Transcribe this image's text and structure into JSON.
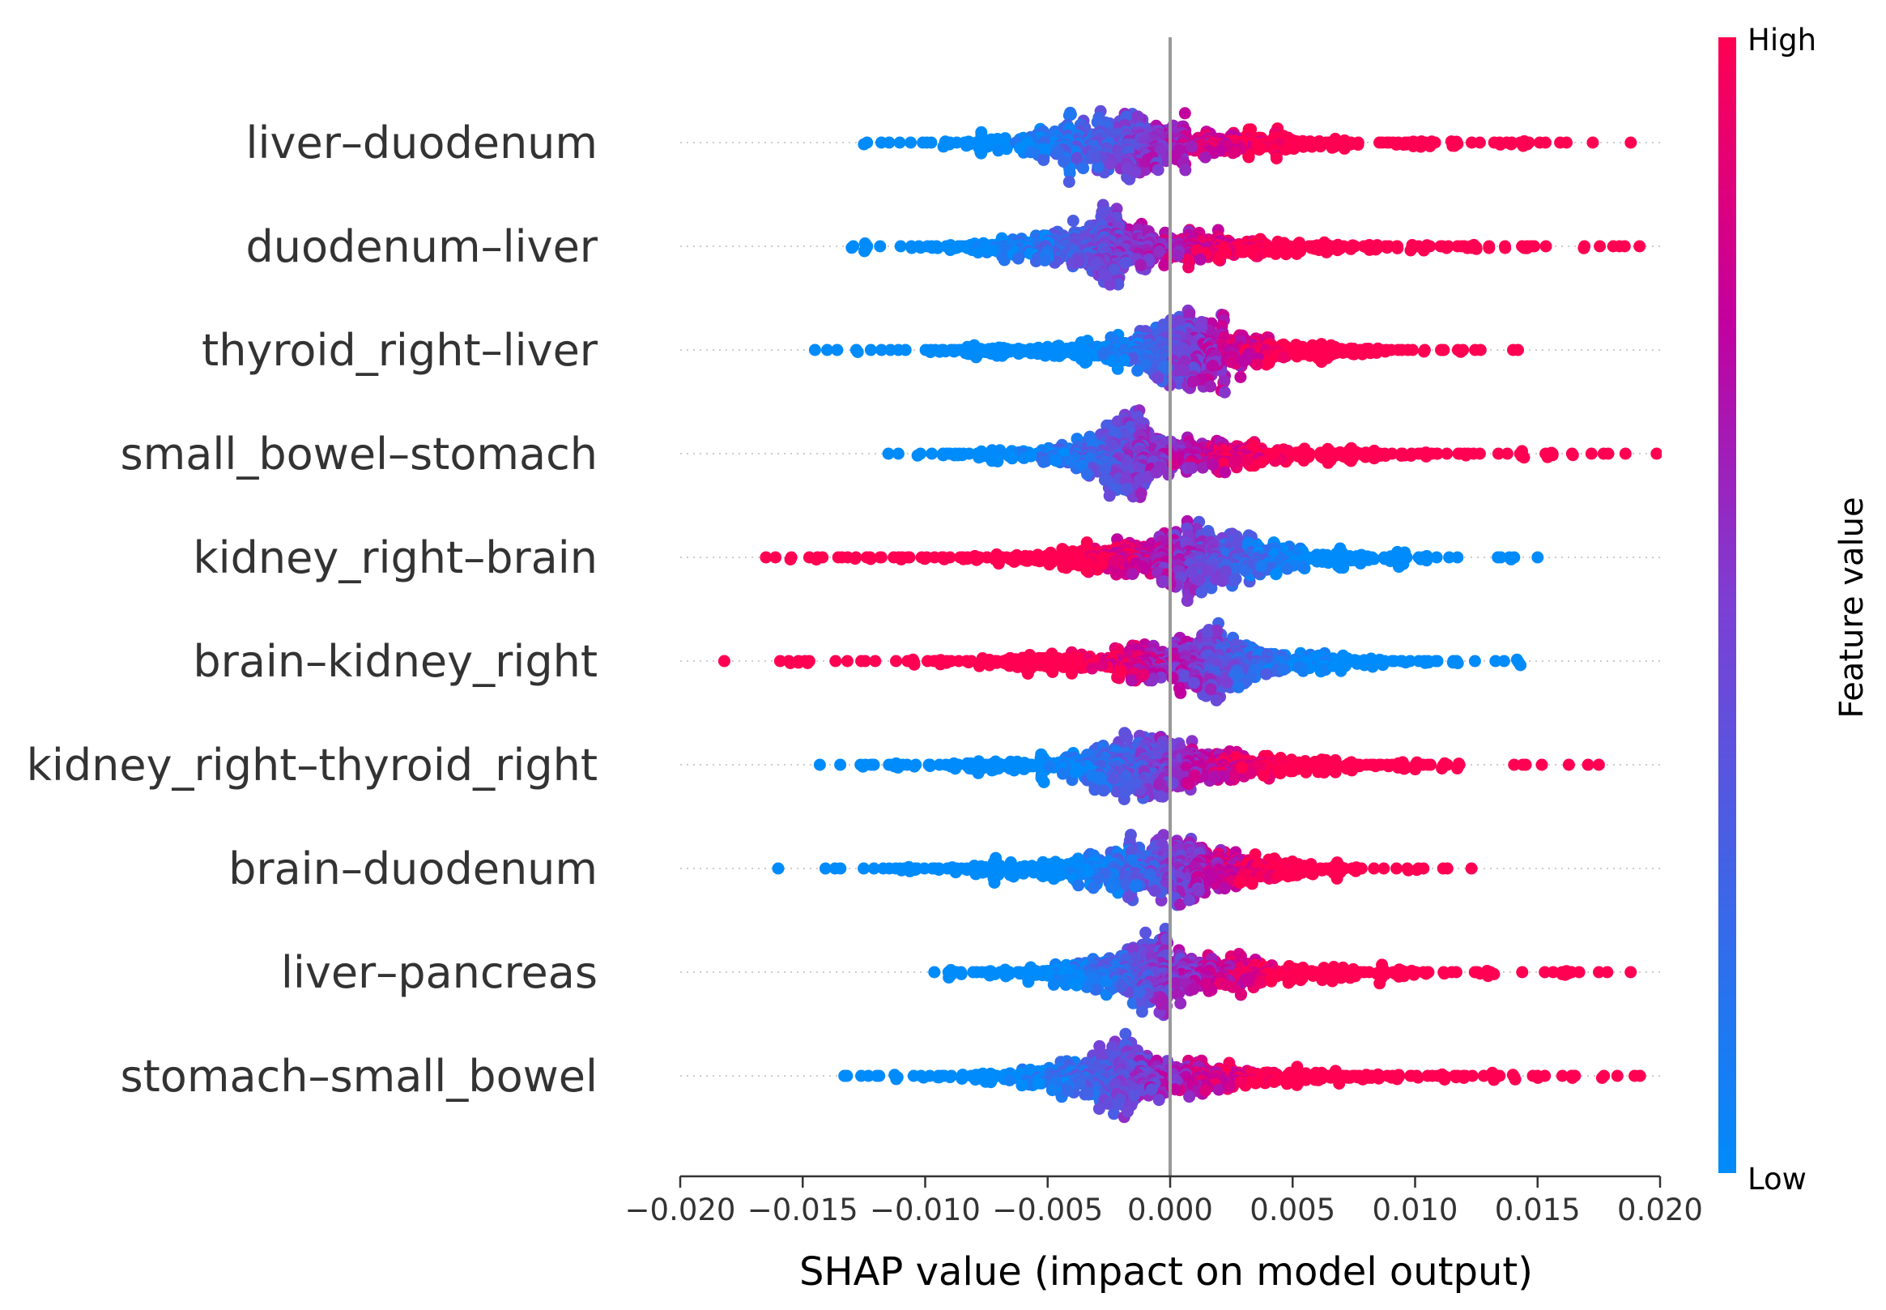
{
  "chart_data": {
    "type": "scatter",
    "subtype": "beeswarm",
    "title": "",
    "xlabel": "SHAP value (impact on model output)",
    "ylabel": "",
    "xlim": [
      -0.02,
      0.02
    ],
    "xticks": [
      -0.02,
      -0.015,
      -0.01,
      -0.005,
      0.0,
      0.005,
      0.01,
      0.015,
      0.02
    ],
    "xtick_labels": [
      "−0.020",
      "−0.015",
      "−0.010",
      "−0.005",
      "0.000",
      "0.005",
      "0.010",
      "0.015",
      "0.020"
    ],
    "zero_line": 0.0,
    "grid": false,
    "features": [
      {
        "name": "liver–duodenum",
        "min": -0.0125,
        "max": 0.02,
        "center": -0.0012,
        "skew": 1.0,
        "outliers": [
          -0.0125
        ]
      },
      {
        "name": "duodenum–liver",
        "min": -0.013,
        "max": 0.02,
        "center": -0.002,
        "skew": 1.0,
        "outliers": [
          -0.013
        ]
      },
      {
        "name": "thyroid_right–liver",
        "min": -0.0145,
        "max": 0.0142,
        "center": 0.0008,
        "skew": 1.0,
        "outliers": [
          -0.0145,
          -0.014,
          0.014,
          0.0142
        ]
      },
      {
        "name": "small_bowel–stomach",
        "min": -0.0115,
        "max": 0.02,
        "center": -0.0012,
        "skew": 1.0,
        "outliers": [
          -0.0115
        ]
      },
      {
        "name": "kidney_right–brain",
        "min": -0.0165,
        "max": 0.015,
        "center": 0.001,
        "skew": -1.0,
        "outliers": [
          -0.0165,
          -0.0155,
          0.015
        ]
      },
      {
        "name": "brain–kidney_right",
        "min": -0.0182,
        "max": 0.0143,
        "center": 0.0012,
        "skew": -1.0,
        "outliers": [
          -0.0182,
          -0.0155,
          -0.0148,
          0.0143
        ]
      },
      {
        "name": "kidney_right–thyroid_right",
        "min": -0.0143,
        "max": 0.0175,
        "center": -0.0003,
        "skew": 1.0,
        "outliers": [
          -0.0143,
          0.0175
        ]
      },
      {
        "name": "brain–duodenum",
        "min": -0.016,
        "max": 0.0123,
        "center": 0.0002,
        "skew": 1.0,
        "outliers": [
          -0.016,
          0.0123
        ]
      },
      {
        "name": "liver–pancreas",
        "min": -0.01,
        "max": 0.0188,
        "center": -0.0002,
        "skew": 1.0,
        "outliers": [
          0.0188
        ]
      },
      {
        "name": "stomach–small_bowel",
        "min": -0.0133,
        "max": 0.0193,
        "center": -0.0012,
        "skew": 1.0,
        "outliers": [
          -0.0133
        ]
      }
    ],
    "colorbar": {
      "title": "Feature value",
      "high_label": "High",
      "low_label": "Low",
      "high_color": "#ff0052",
      "low_color": "#008bfb"
    },
    "colors": {
      "zero_line": "#999999",
      "axis": "#333333",
      "row_guides": "#cccccc"
    }
  }
}
